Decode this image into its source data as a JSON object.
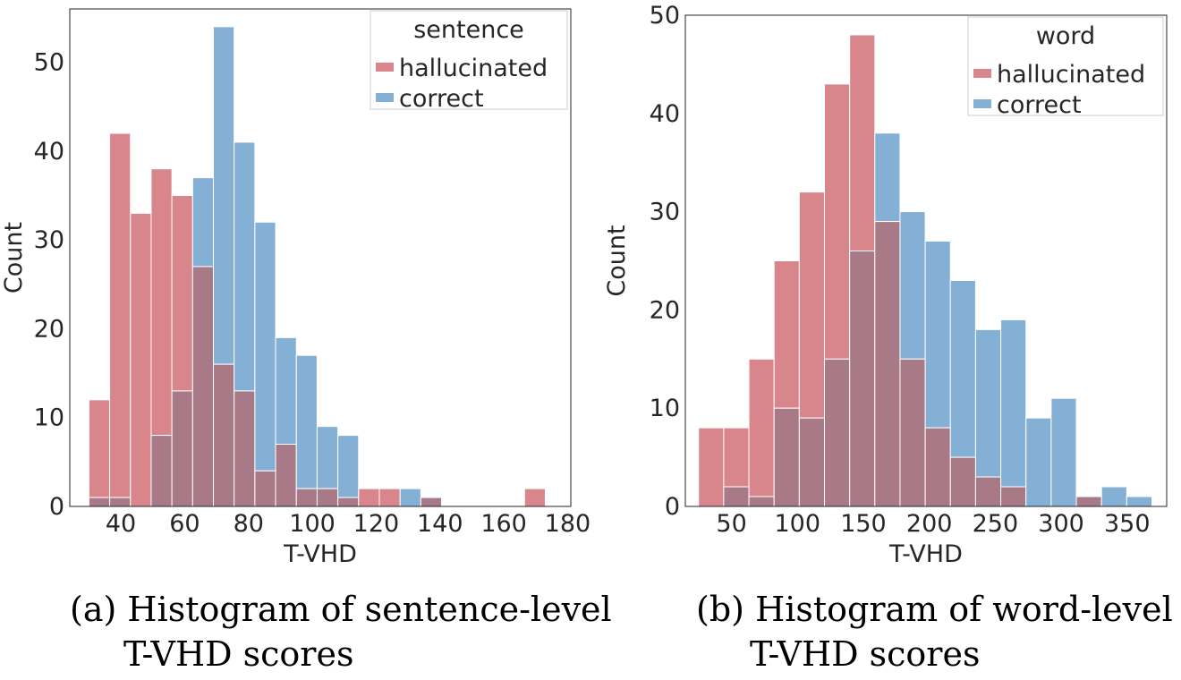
{
  "colors": {
    "hallucinated": "#d9858c",
    "correct": "#85b0d6",
    "overlap": "#a87a87",
    "axis": "#262626"
  },
  "captions": {
    "a": {
      "tag": "(a)",
      "line1": "Histogram of sentence-level",
      "line2": "T-VHD scores"
    },
    "b": {
      "tag": "(b)",
      "line1": "Histogram of word-level",
      "line2": "T-VHD scores"
    }
  },
  "chart_data": [
    {
      "type": "bar",
      "xlabel": "T-VHD",
      "ylabel": "Count",
      "xlim": [
        24,
        181
      ],
      "ylim": [
        0,
        56
      ],
      "xticks": [
        40,
        60,
        80,
        100,
        120,
        140,
        160,
        180
      ],
      "yticks": [
        0,
        10,
        20,
        30,
        40,
        50
      ],
      "legend": {
        "title": "sentence",
        "position": "top-right"
      },
      "bin_edges": [
        30,
        36.5,
        43,
        49.5,
        56,
        62.5,
        69,
        75.5,
        82,
        88.5,
        95,
        101.5,
        108,
        114.5,
        121,
        127.5,
        134,
        140.5,
        147,
        153.5,
        160,
        166.5,
        173,
        179.5
      ],
      "series": [
        {
          "name": "hallucinated",
          "values": [
            12,
            42,
            33,
            38,
            35,
            27,
            16,
            13,
            4,
            7,
            2,
            2,
            1,
            2,
            2,
            0,
            1,
            0,
            0,
            0,
            0,
            2,
            0
          ]
        },
        {
          "name": "correct",
          "values": [
            1,
            1,
            0,
            8,
            13,
            37,
            54,
            41,
            32,
            19,
            17,
            9,
            8,
            0,
            0,
            2,
            1,
            0,
            0,
            0,
            0,
            0,
            0
          ]
        }
      ]
    },
    {
      "type": "bar",
      "xlabel": "T-VHD",
      "ylabel": "Count",
      "xlim": [
        15,
        380
      ],
      "ylim": [
        0,
        50
      ],
      "xticks": [
        50,
        100,
        150,
        200,
        250,
        300,
        350
      ],
      "yticks": [
        0,
        10,
        20,
        30,
        40,
        50
      ],
      "legend": {
        "title": "word",
        "position": "top-right"
      },
      "bin_edges": [
        25,
        44.1,
        63.2,
        82.3,
        101.4,
        120.5,
        139.6,
        158.7,
        177.8,
        196.9,
        216,
        235.1,
        254.2,
        273.3,
        292.4,
        311.5,
        330.6,
        349.7,
        368.8
      ],
      "series": [
        {
          "name": "hallucinated",
          "values": [
            8,
            8,
            15,
            25,
            32,
            43,
            48,
            29,
            15,
            8,
            5,
            3,
            2,
            0,
            0,
            1,
            0,
            0
          ]
        },
        {
          "name": "correct",
          "values": [
            0,
            2,
            1,
            10,
            9,
            15,
            26,
            38,
            30,
            27,
            23,
            18,
            19,
            9,
            11,
            1,
            2,
            1
          ]
        }
      ]
    }
  ]
}
